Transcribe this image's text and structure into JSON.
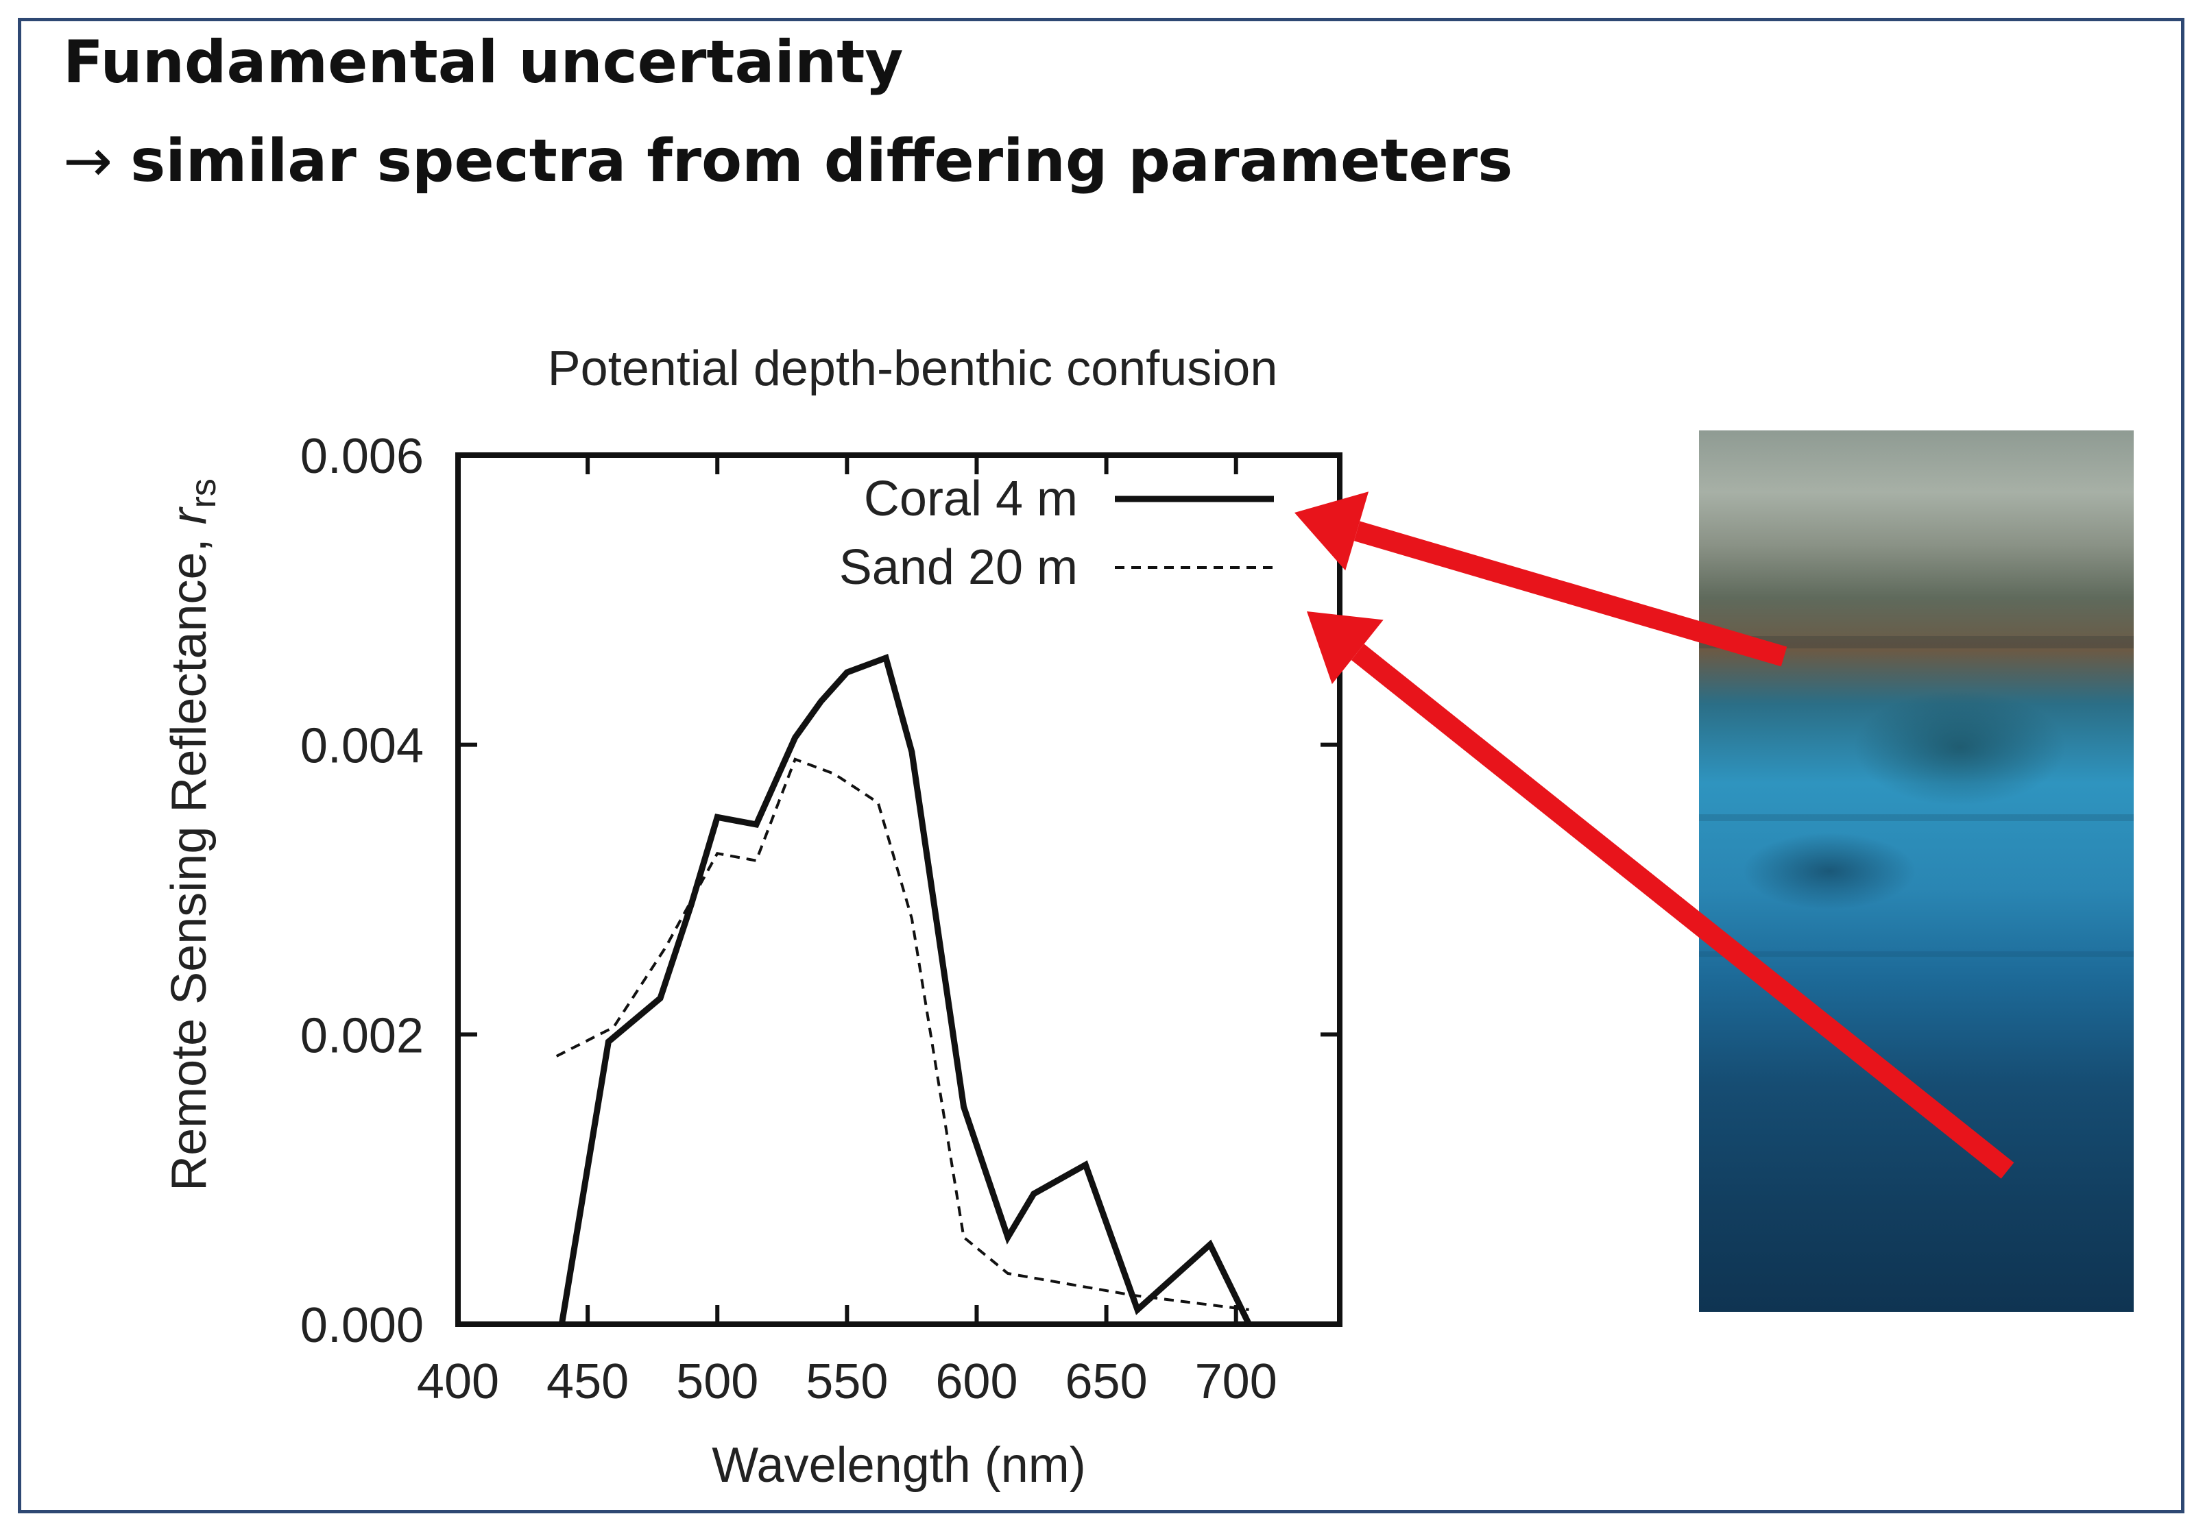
{
  "slide": {
    "title_line1": "Fundamental uncertainty",
    "title_arrow": "→",
    "title_line2": "similar spectra from differing parameters"
  },
  "chart_data": {
    "type": "line",
    "title": "Potential depth-benthic confusion",
    "xlabel": "Wavelength (nm)",
    "ylabel": "Remote Sensing Reflectance, ",
    "ylabel_symbol": "r",
    "ylabel_subscript": "rs",
    "xlim": [
      400,
      740
    ],
    "ylim": [
      0,
      0.006
    ],
    "xticks": [
      400,
      450,
      500,
      550,
      600,
      650,
      700
    ],
    "yticks": [
      "0.000",
      "0.002",
      "0.004",
      "0.006"
    ],
    "ytick_values": [
      0,
      0.002,
      0.004,
      0.006
    ],
    "legend_position": "top-right",
    "grid": false,
    "series": [
      {
        "name": "Coral 4 m",
        "style": "solid",
        "color": "#111111",
        "x": [
          440,
          458,
          478,
          490,
          500,
          515,
          530,
          540,
          550,
          565,
          575,
          595,
          612,
          622,
          642,
          662,
          690,
          705
        ],
        "y": [
          0.0,
          0.00195,
          0.00225,
          0.0029,
          0.0035,
          0.00345,
          0.00405,
          0.0043,
          0.0045,
          0.0046,
          0.00395,
          0.0015,
          0.0006,
          0.0009,
          0.0011,
          0.0001,
          0.00055,
          0.0
        ]
      },
      {
        "name": "Sand 20 m",
        "style": "dashed",
        "color": "#111111",
        "x": [
          438,
          460,
          480,
          500,
          515,
          530,
          545,
          562,
          575,
          595,
          612,
          660,
          705
        ],
        "y": [
          0.00185,
          0.00205,
          0.0026,
          0.00325,
          0.0032,
          0.0039,
          0.0038,
          0.0036,
          0.0028,
          0.0006,
          0.00035,
          0.0002,
          0.0001
        ]
      }
    ]
  },
  "annotations": {
    "arrow_color": "#e8141b"
  }
}
